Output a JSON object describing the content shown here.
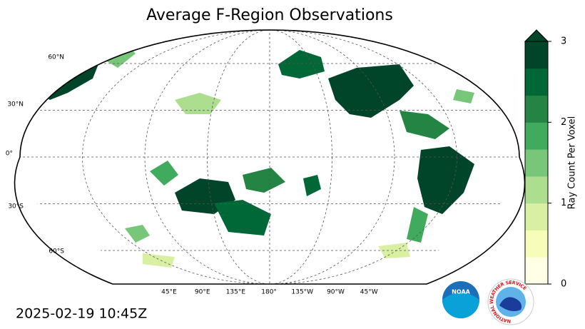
{
  "title": "Average F-Region Observations",
  "map": {
    "lat_labels": [
      "60°N",
      "30°N",
      "0°",
      "30°S",
      "60°S"
    ],
    "lon_labels": [
      "45°E",
      "90°E",
      "135°E",
      "180°",
      "135°W",
      "90°W",
      "45°W"
    ]
  },
  "colorbar": {
    "label": "Ray Count Per Voxel",
    "lim": [
      0,
      3
    ],
    "ticks": [
      0,
      1,
      2,
      3
    ],
    "extend": "max",
    "colors": [
      "#ffffe5",
      "#f7fcb9",
      "#d9f0a3",
      "#addd8e",
      "#78c679",
      "#41ab5d",
      "#238443",
      "#006837",
      "#004529"
    ]
  },
  "timestamp": "2025-02-19 10:45Z",
  "logos": {
    "noaa": "NOAA",
    "nws": "NATIONAL WEATHER SERVICE"
  }
}
